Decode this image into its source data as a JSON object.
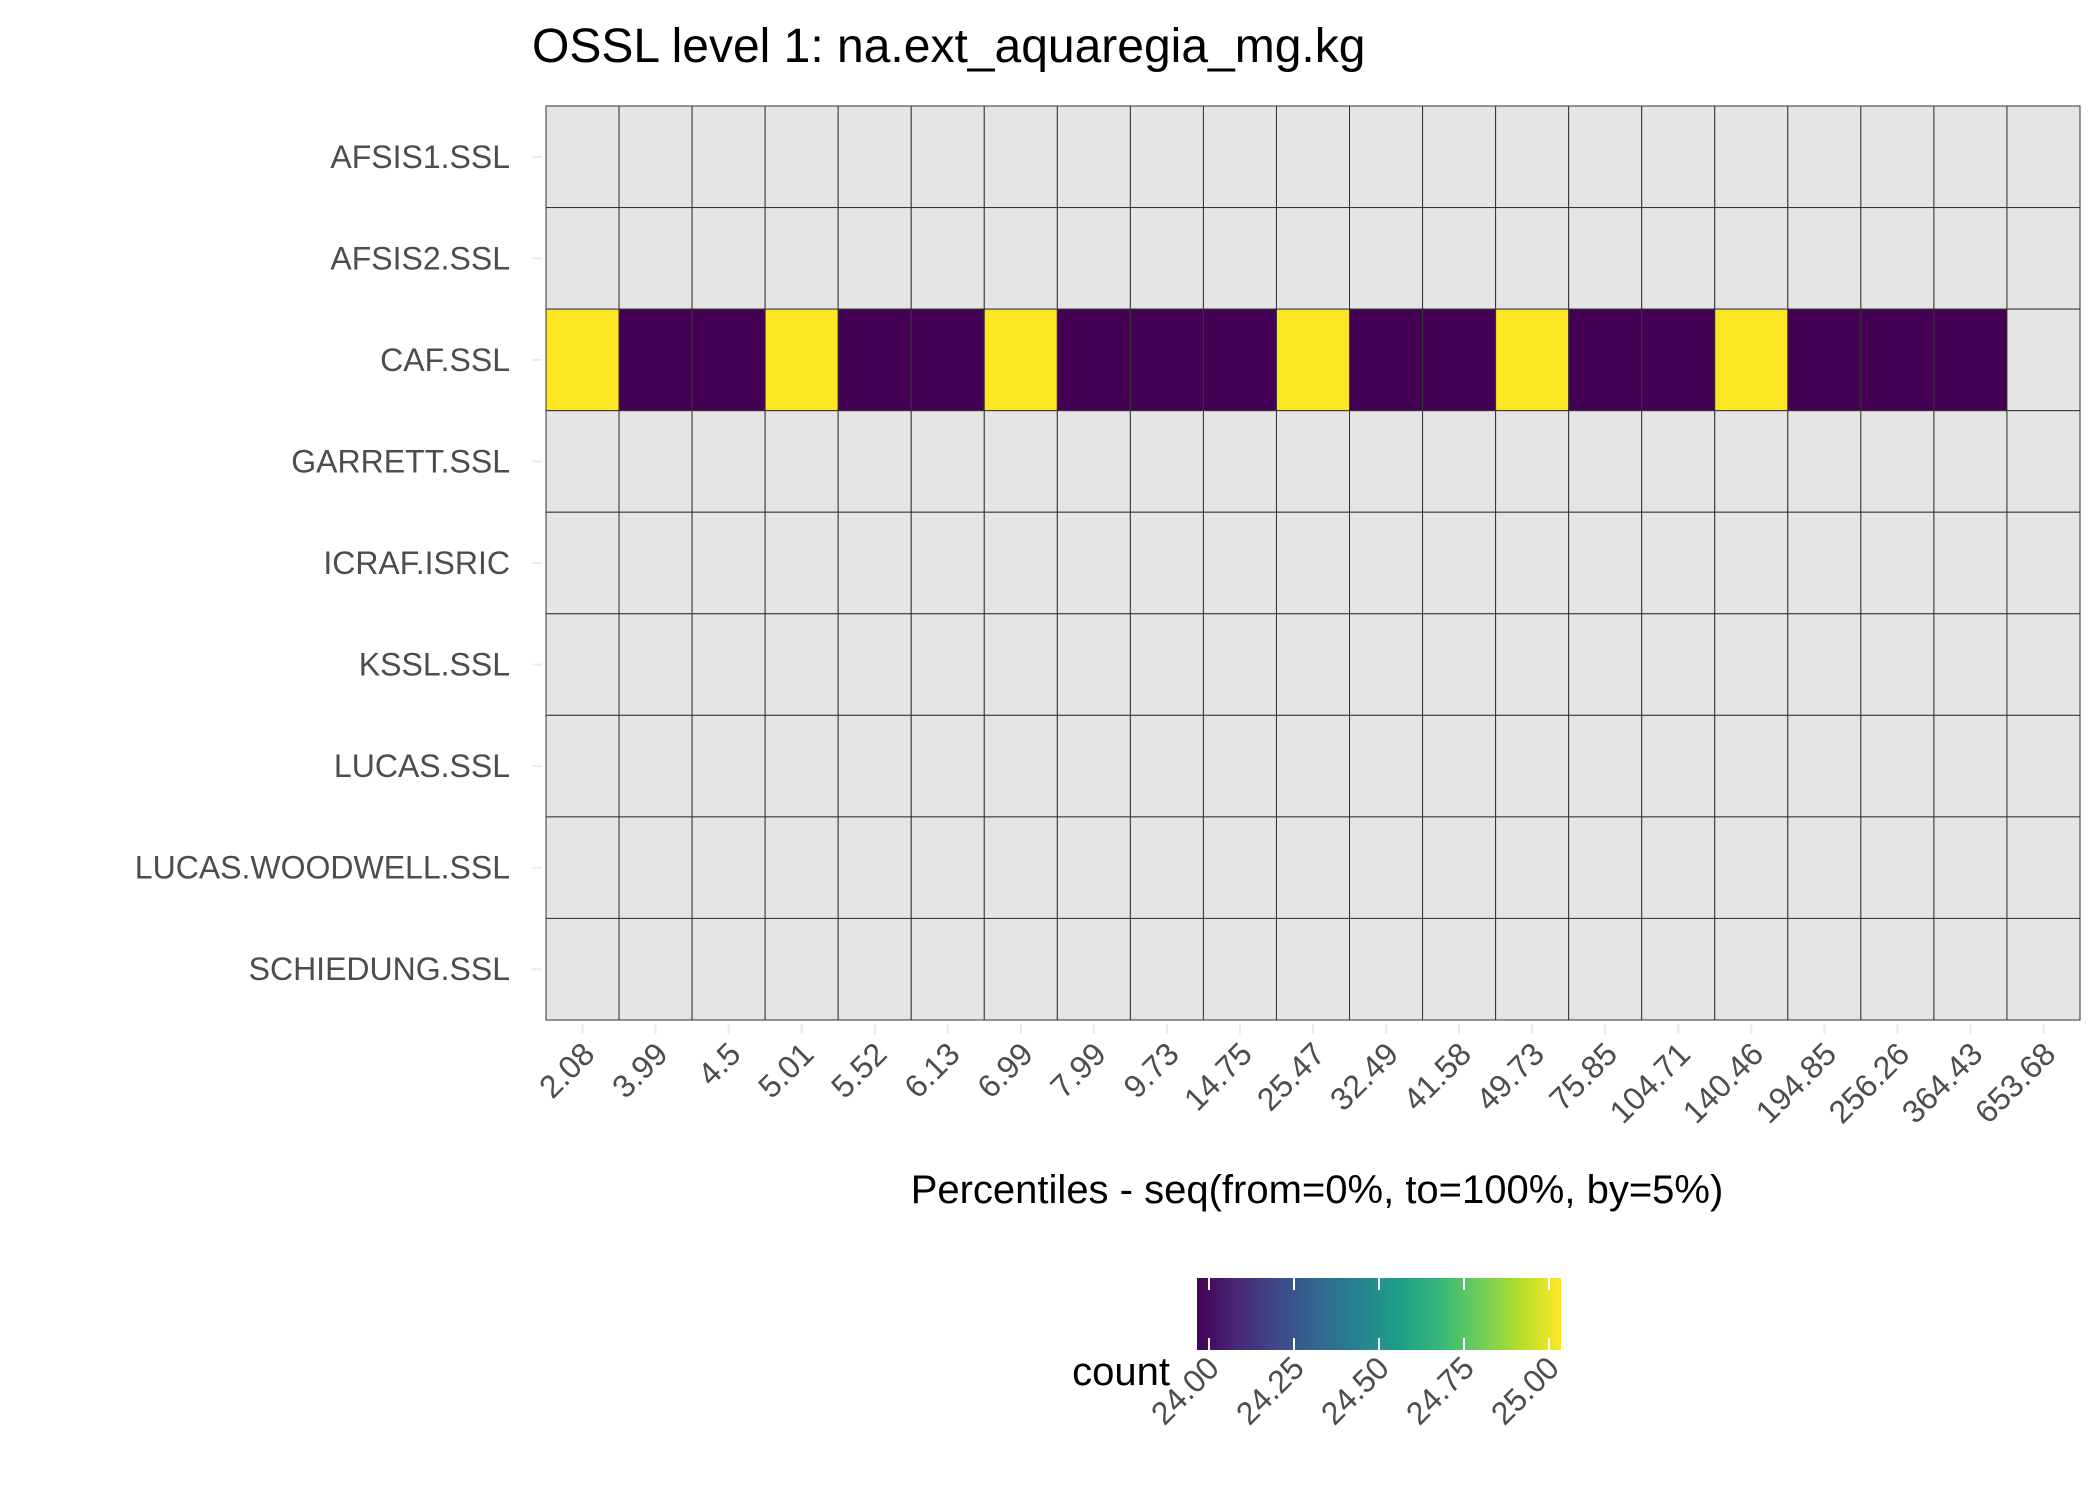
{
  "chart_data": {
    "type": "heatmap",
    "title": "OSSL level 1: na.ext_aquaregia_mg.kg",
    "xlabel": "Percentiles - seq(from=0%, to=100%, by=5%)",
    "ylabel": "",
    "x_categories": [
      "2.08",
      "3.99",
      "4.5",
      "5.01",
      "5.52",
      "6.13",
      "6.99",
      "7.99",
      "9.73",
      "14.75",
      "25.47",
      "32.49",
      "41.58",
      "49.73",
      "75.85",
      "104.71",
      "140.46",
      "194.85",
      "256.26",
      "364.43",
      "653.68"
    ],
    "y_categories": [
      "AFSIS1.SSL",
      "AFSIS2.SSL",
      "CAF.SSL",
      "GARRETT.SSL",
      "ICRAF.ISRIC",
      "KSSL.SSL",
      "LUCAS.SSL",
      "LUCAS.WOODWELL.SSL",
      "SCHIEDUNG.SSL"
    ],
    "cells": [
      {
        "y": "CAF.SSL",
        "values": [
          25,
          24,
          24,
          25,
          24,
          24,
          25,
          24,
          24,
          24,
          25,
          24,
          24,
          25,
          24,
          24,
          25,
          24,
          24,
          24,
          null
        ]
      }
    ],
    "missing_color": "#e5e5e5",
    "legend": {
      "title": "count",
      "placement": "bottom",
      "range": [
        24.0,
        25.0
      ],
      "ticks": [
        "24.00",
        "24.25",
        "24.50",
        "24.75",
        "25.00"
      ],
      "colors": [
        "#440154",
        "#482878",
        "#3e4989",
        "#31688e",
        "#26828e",
        "#1f9e89",
        "#35b779",
        "#6ece58",
        "#b5de2b",
        "#fde725"
      ]
    }
  }
}
